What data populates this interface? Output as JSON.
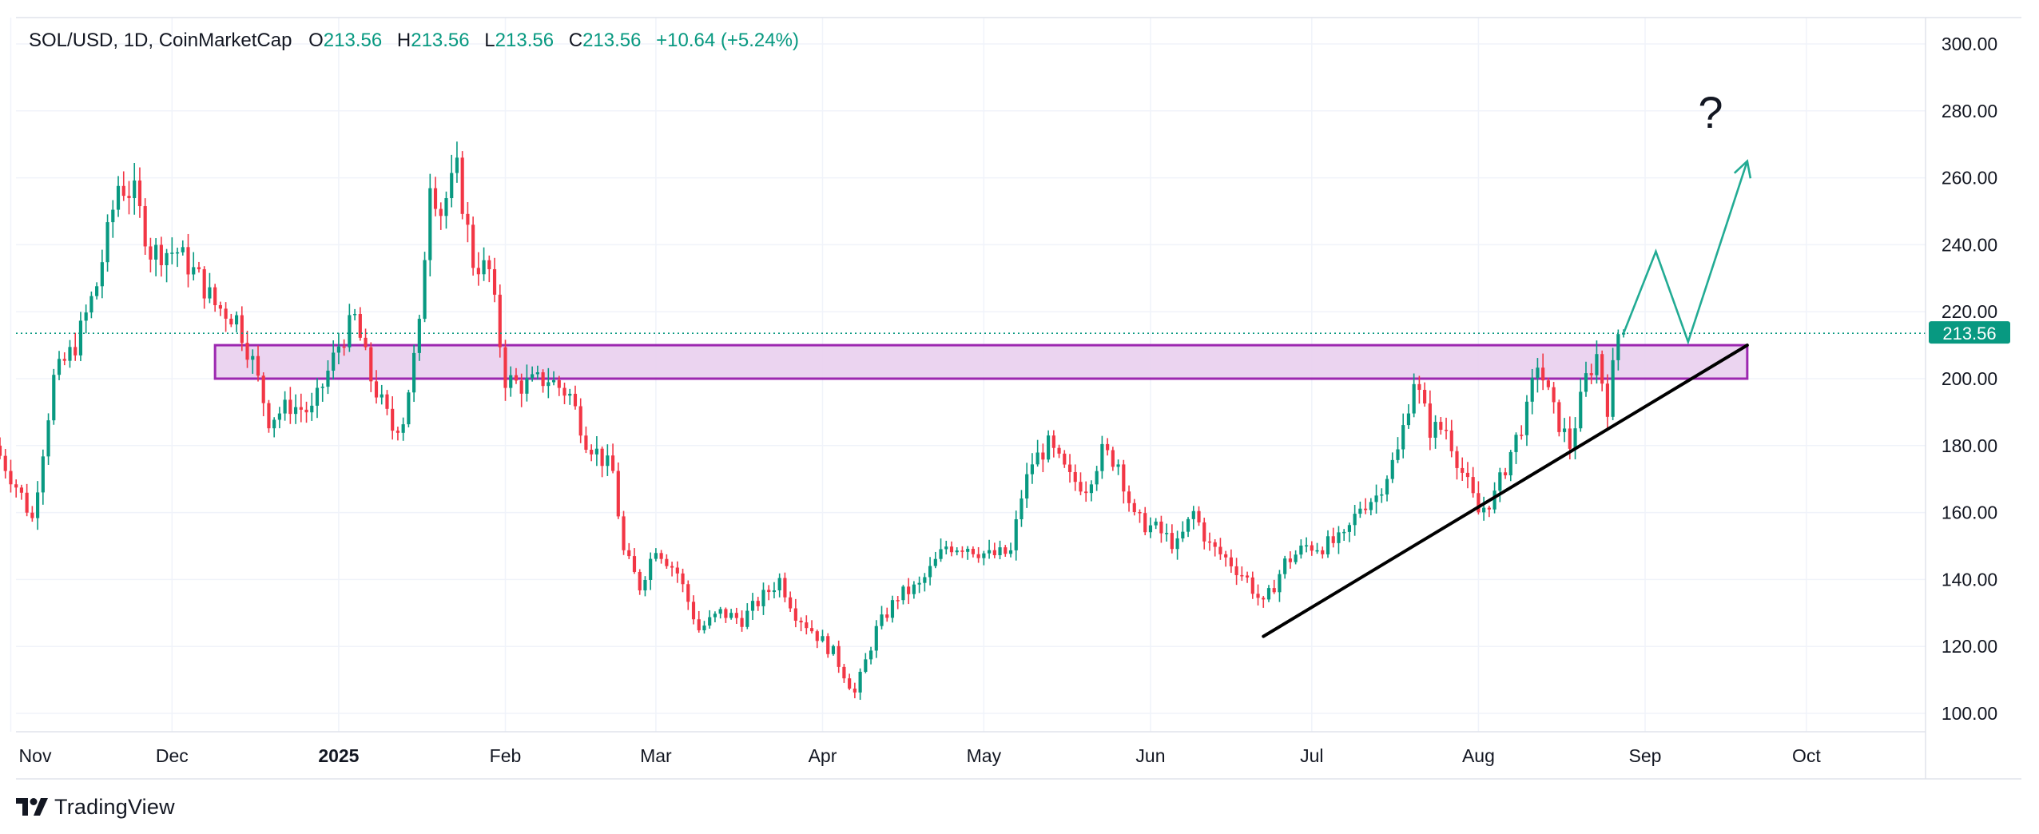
{
  "legend": {
    "symbol": "SOL/USD, 1D, CoinMarketCap",
    "o_label": "O",
    "o_value": "213.56",
    "h_label": "H",
    "h_value": "213.56",
    "l_label": "L",
    "l_value": "213.56",
    "c_label": "C",
    "c_value": "213.56",
    "change": "+10.64 (+5.24%)"
  },
  "price_tag": "213.56",
  "brand": "TradingView",
  "annotation_text": "?",
  "colors": {
    "up": "#089981",
    "down": "#f23645",
    "grid": "#f0f3fa",
    "zone_fill": "#e9cfee",
    "zone_border": "#9c27b0",
    "trendline": "#000000",
    "projection": "#22ab94",
    "text": "#131722"
  },
  "chart_data": {
    "type": "candlestick",
    "y_range": [
      93,
      303
    ],
    "y_ticks": [
      "300.00",
      "280.00",
      "260.00",
      "240.00",
      "220.00",
      "200.00",
      "180.00",
      "160.00",
      "140.00",
      "120.00",
      "100.00"
    ],
    "x_labels": [
      "Nov",
      "Dec",
      "2025",
      "Feb",
      "Mar",
      "Apr",
      "May",
      "Jun",
      "Jul",
      "Aug",
      "Sep",
      "Oct"
    ],
    "x_start": "2024-10-30",
    "x_end": "2025-10-30",
    "last_price": 213.56,
    "control_points": [
      [
        "2024-10-30",
        180
      ],
      [
        "2024-11-04",
        165
      ],
      [
        "2024-11-06",
        158
      ],
      [
        "2024-11-10",
        200
      ],
      [
        "2024-11-14",
        210
      ],
      [
        "2024-11-18",
        228
      ],
      [
        "2024-11-22",
        258
      ],
      [
        "2024-11-25",
        255
      ],
      [
        "2024-11-28",
        238
      ],
      [
        "2024-12-03",
        238
      ],
      [
        "2024-12-07",
        230
      ],
      [
        "2024-12-10",
        222
      ],
      [
        "2024-12-14",
        218
      ],
      [
        "2024-12-17",
        205
      ],
      [
        "2024-12-20",
        188
      ],
      [
        "2024-12-24",
        192
      ],
      [
        "2024-12-28",
        190
      ],
      [
        "2025-01-02",
        210
      ],
      [
        "2025-01-05",
        218
      ],
      [
        "2025-01-08",
        200
      ],
      [
        "2025-01-12",
        185
      ],
      [
        "2025-01-14",
        188
      ],
      [
        "2025-01-17",
        215
      ],
      [
        "2025-01-19",
        260
      ],
      [
        "2025-01-21",
        250
      ],
      [
        "2025-01-24",
        262
      ],
      [
        "2025-01-27",
        235
      ],
      [
        "2025-01-30",
        232
      ],
      [
        "2025-02-02",
        200
      ],
      [
        "2025-02-05",
        198
      ],
      [
        "2025-02-10",
        200
      ],
      [
        "2025-02-14",
        195
      ],
      [
        "2025-02-17",
        182
      ],
      [
        "2025-02-22",
        172
      ],
      [
        "2025-02-24",
        148
      ],
      [
        "2025-02-27",
        138
      ],
      [
        "2025-03-02",
        150
      ],
      [
        "2025-03-06",
        142
      ],
      [
        "2025-03-10",
        125
      ],
      [
        "2025-03-14",
        130
      ],
      [
        "2025-03-18",
        128
      ],
      [
        "2025-03-22",
        135
      ],
      [
        "2025-03-25",
        140
      ],
      [
        "2025-03-28",
        130
      ],
      [
        "2025-03-31",
        125
      ],
      [
        "2025-04-04",
        118
      ],
      [
        "2025-04-08",
        106
      ],
      [
        "2025-04-12",
        125
      ],
      [
        "2025-04-16",
        135
      ],
      [
        "2025-04-20",
        138
      ],
      [
        "2025-04-25",
        150
      ],
      [
        "2025-04-29",
        150
      ],
      [
        "2025-05-03",
        147
      ],
      [
        "2025-05-07",
        148
      ],
      [
        "2025-05-09",
        165
      ],
      [
        "2025-05-11",
        175
      ],
      [
        "2025-05-14",
        180
      ],
      [
        "2025-05-18",
        170
      ],
      [
        "2025-05-21",
        168
      ],
      [
        "2025-05-24",
        178
      ],
      [
        "2025-05-27",
        175
      ],
      [
        "2025-05-30",
        158
      ],
      [
        "2025-06-03",
        155
      ],
      [
        "2025-06-07",
        150
      ],
      [
        "2025-06-10",
        160
      ],
      [
        "2025-06-13",
        150
      ],
      [
        "2025-06-17",
        145
      ],
      [
        "2025-06-20",
        140
      ],
      [
        "2025-06-23",
        132
      ],
      [
        "2025-06-27",
        145
      ],
      [
        "2025-07-01",
        150
      ],
      [
        "2025-07-04",
        150
      ],
      [
        "2025-07-08",
        152
      ],
      [
        "2025-07-11",
        162
      ],
      [
        "2025-07-14",
        165
      ],
      [
        "2025-07-18",
        178
      ],
      [
        "2025-07-21",
        200
      ],
      [
        "2025-07-24",
        185
      ],
      [
        "2025-07-27",
        185
      ],
      [
        "2025-07-30",
        172
      ],
      [
        "2025-08-02",
        160
      ],
      [
        "2025-08-05",
        165
      ],
      [
        "2025-08-08",
        178
      ],
      [
        "2025-08-11",
        190
      ],
      [
        "2025-08-13",
        205
      ],
      [
        "2025-08-16",
        190
      ],
      [
        "2025-08-19",
        180
      ],
      [
        "2025-08-22",
        200
      ],
      [
        "2025-08-24",
        207
      ],
      [
        "2025-08-26",
        192
      ],
      [
        "2025-08-28",
        213.56
      ]
    ],
    "zone": {
      "from": "2024-12-09",
      "to": "2025-09-20",
      "low": 200,
      "high": 210
    },
    "trendline": [
      [
        "2025-06-22",
        123
      ],
      [
        "2025-09-20",
        210
      ]
    ],
    "projection": [
      [
        "2025-08-28",
        213.56
      ],
      [
        "2025-09-03",
        238
      ],
      [
        "2025-09-09",
        211
      ],
      [
        "2025-09-20",
        265
      ]
    ]
  }
}
